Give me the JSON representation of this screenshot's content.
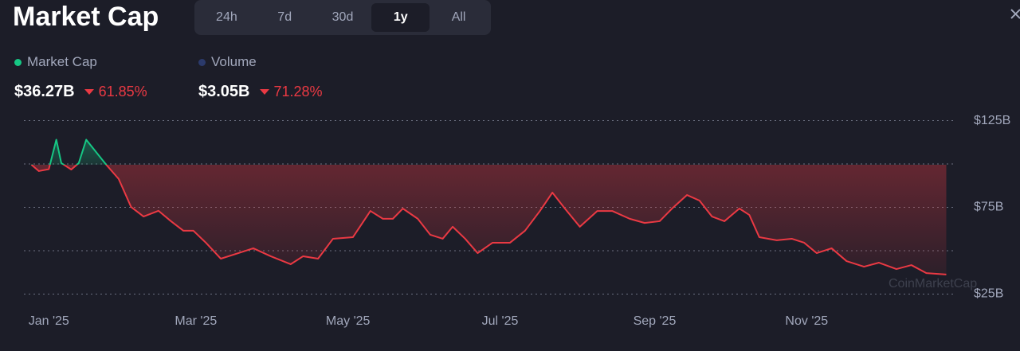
{
  "header": {
    "title": "Market Cap",
    "tabs": [
      "24h",
      "7d",
      "30d",
      "1y",
      "All"
    ],
    "active_tab": 3,
    "legend": [
      {
        "name": "Market Cap",
        "color": "#16c784",
        "value": "$36.27B",
        "change": "61.85%"
      },
      {
        "name": "Volume",
        "color": "#2b3a6b",
        "value": "$3.05B",
        "change": "71.28%"
      }
    ]
  },
  "chart_data": {
    "type": "line",
    "watermark": "CoinMarketCap",
    "x": [
      -7,
      -4,
      0,
      3,
      5,
      9,
      12,
      15,
      20,
      23,
      28,
      33,
      38,
      44,
      49,
      54,
      58,
      63,
      69,
      76,
      82,
      89,
      97,
      102,
      108,
      114,
      122,
      129,
      134,
      138,
      142,
      148,
      153,
      158,
      162,
      167,
      172,
      178,
      185,
      191,
      197,
      202,
      207,
      213,
      220,
      226,
      233,
      239,
      245,
      250,
      256,
      261,
      266,
      271,
      277,
      281,
      285,
      292,
      298,
      303,
      308,
      314,
      320,
      327,
      333,
      340,
      346,
      352,
      360
    ],
    "series": [
      {
        "name": "Market Cap",
        "color": "#ea3943",
        "up_color": "#16c784",
        "values": [
          99.6,
          95.9,
          97,
          114,
          100.5,
          96.8,
          100.5,
          114,
          105,
          99.6,
          91.4,
          75.2,
          69.7,
          73,
          67,
          61.5,
          61.5,
          54.6,
          45.4,
          48.6,
          51.4,
          46.8,
          42.2,
          46.8,
          45.4,
          56.9,
          57.8,
          72.9,
          68.4,
          68.4,
          74.3,
          68.4,
          59.2,
          56.9,
          63.8,
          56.9,
          48.6,
          54.6,
          54.6,
          61.5,
          72.9,
          83.5,
          74.3,
          63.8,
          72.9,
          72.9,
          68.4,
          66,
          67,
          74.3,
          82.1,
          78.9,
          69.7,
          67,
          74.3,
          70.6,
          57.8,
          56,
          56.9,
          54.6,
          48.6,
          51.4,
          44,
          40.8,
          43.1,
          39.4,
          41.7,
          37.1,
          36.27
        ]
      }
    ],
    "xlim": [
      -10,
      364
    ],
    "xticks": [
      {
        "value": 0,
        "label": "Jan '25"
      },
      {
        "value": 59,
        "label": "Mar '25"
      },
      {
        "value": 120,
        "label": "May '25"
      },
      {
        "value": 181,
        "label": "Jul '25"
      },
      {
        "value": 243,
        "label": "Sep '25"
      },
      {
        "value": 304,
        "label": "Nov '25"
      }
    ],
    "ylim": [
      22,
      128
    ],
    "yticks": [
      {
        "value": 25,
        "label": "$25B"
      },
      {
        "value": 75,
        "label": "$75B"
      },
      {
        "value": 125,
        "label": "$125B"
      }
    ],
    "minor_yticks": [
      50,
      100
    ],
    "grid": true
  }
}
